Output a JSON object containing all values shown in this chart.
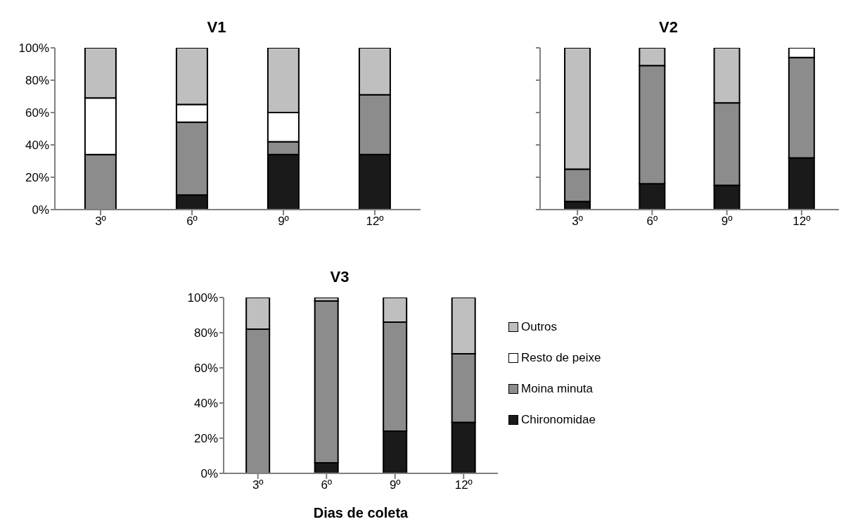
{
  "chart_data": [
    {
      "type": "bar",
      "title": "V1",
      "stacked": true,
      "categories": [
        "3º",
        "6º",
        "9º",
        "12º"
      ],
      "ylim": [
        0,
        100
      ],
      "yticks": [
        {
          "value": 0,
          "label": "0%"
        },
        {
          "value": 20,
          "label": "20%"
        },
        {
          "value": 40,
          "label": "40%"
        },
        {
          "value": 60,
          "label": "60%"
        },
        {
          "value": 80,
          "label": "80%"
        },
        {
          "value": 100,
          "label": "100%"
        }
      ],
      "legend": false,
      "grid": false,
      "series": [
        {
          "color": "#1a1a1a",
          "values": [
            0,
            9,
            34,
            34
          ]
        },
        {
          "color": "#8c8c8c",
          "values": [
            34,
            45,
            8,
            37
          ]
        },
        {
          "color": "#ffffff",
          "values": [
            35,
            11,
            18,
            0
          ]
        },
        {
          "color": "#bfbfbf",
          "values": [
            31,
            35,
            40,
            29
          ]
        }
      ]
    },
    {
      "type": "bar",
      "title": "V2",
      "stacked": true,
      "categories": [
        "3º",
        "6º",
        "9º",
        "12º"
      ],
      "ylim": [
        0,
        100
      ],
      "yticks": [
        0,
        20,
        40,
        60,
        80,
        100
      ],
      "tick_labels": "x",
      "legend": false,
      "grid": false,
      "series": [
        {
          "color": "#1a1a1a",
          "values": [
            5,
            16,
            15,
            32
          ]
        },
        {
          "color": "#8c8c8c",
          "values": [
            20,
            73,
            51,
            62
          ]
        },
        {
          "color": "#ffffff",
          "values": [
            0,
            0,
            0,
            6
          ]
        },
        {
          "color": "#bfbfbf",
          "values": [
            75,
            11,
            34,
            0
          ]
        }
      ]
    },
    {
      "type": "bar",
      "title": "V3",
      "xlabel": "Dias de coleta",
      "stacked": true,
      "categories": [
        "3º",
        "6º",
        "9º",
        "12º"
      ],
      "ylim": [
        0,
        100
      ],
      "yticks": [
        {
          "value": 0,
          "label": "0%"
        },
        {
          "value": 20,
          "label": "20%"
        },
        {
          "value": 40,
          "label": "40%"
        },
        {
          "value": 60,
          "label": "60%"
        },
        {
          "value": 80,
          "label": "80%"
        },
        {
          "value": 100,
          "label": "100%"
        }
      ],
      "legend": "right",
      "grid": false,
      "series": [
        {
          "name": "Chironomidae",
          "color": "#1a1a1a",
          "values": [
            0,
            6,
            24,
            29
          ]
        },
        {
          "name": "Moina minuta",
          "color": "#8c8c8c",
          "values": [
            82,
            92,
            62,
            39
          ]
        },
        {
          "name": "Resto de peixe",
          "color": "#ffffff",
          "values": [
            0,
            0,
            0,
            0
          ]
        },
        {
          "name": "Outros",
          "color": "#bfbfbf",
          "values": [
            18,
            2,
            14,
            32
          ]
        }
      ]
    }
  ]
}
